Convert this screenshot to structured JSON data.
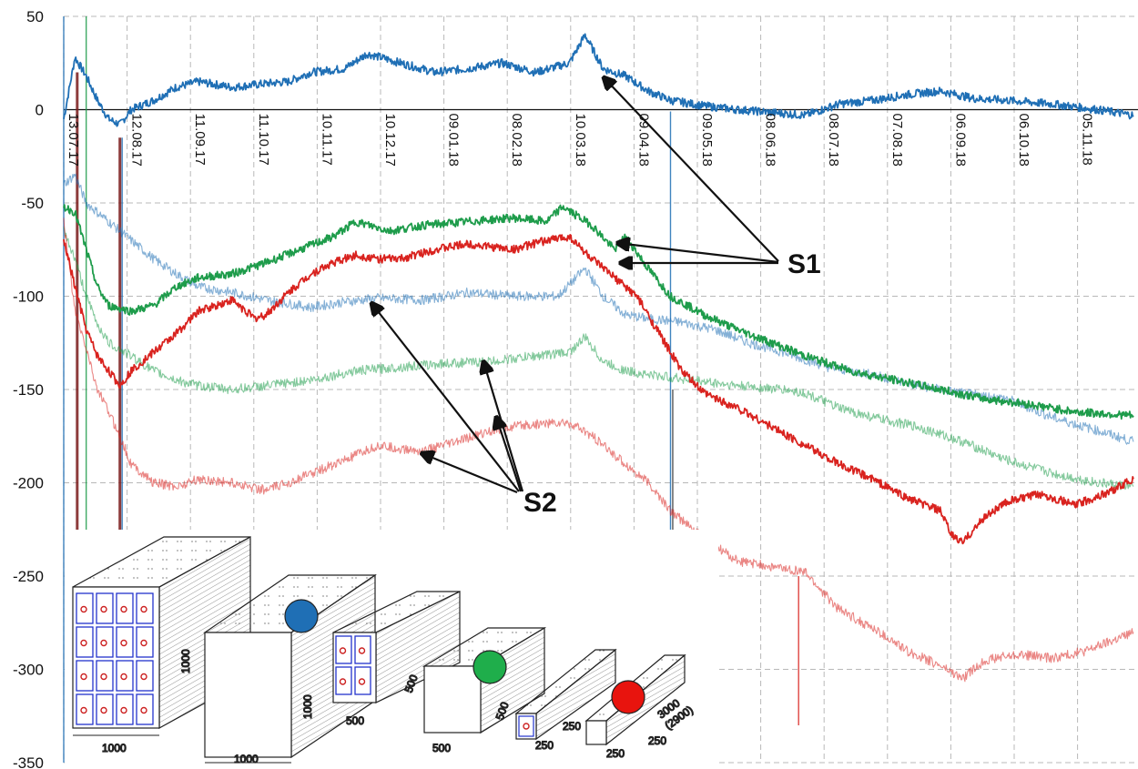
{
  "chart_data": {
    "type": "line",
    "ylim": [
      -350,
      50
    ],
    "yticks": [
      50,
      0,
      -50,
      -100,
      -150,
      -200,
      -250,
      -300,
      -350
    ],
    "ytick_labels": [
      "50",
      "0",
      "-50",
      "-100",
      "-150",
      "-200",
      "-250",
      "-300",
      "-350"
    ],
    "x_ticks": [
      "13.07.17",
      "12.08.17",
      "11.09.17",
      "11.10.17",
      "10.11.17",
      "10.12.17",
      "09.01.18",
      "08.02.18",
      "10.03.18",
      "09.04.18",
      "09.05.18",
      "08.06.18",
      "08.07.18",
      "07.08.18",
      "06.09.18",
      "06.10.18",
      "05.11.18"
    ],
    "grid": true,
    "series": [
      {
        "color": "#1f6fb5",
        "style": "solid",
        "weight": "bold",
        "points": [
          [
            0,
            -5
          ],
          [
            5,
            28
          ],
          [
            10,
            18
          ],
          [
            15,
            5
          ],
          [
            20,
            -5
          ],
          [
            25,
            -8
          ],
          [
            30,
            0
          ],
          [
            40,
            5
          ],
          [
            50,
            12
          ],
          [
            60,
            15
          ],
          [
            75,
            12
          ],
          [
            90,
            14
          ],
          [
            100,
            15
          ],
          [
            110,
            20
          ],
          [
            125,
            22
          ],
          [
            135,
            30
          ],
          [
            150,
            25
          ],
          [
            165,
            20
          ],
          [
            180,
            22
          ],
          [
            195,
            25
          ],
          [
            210,
            20
          ],
          [
            225,
            25
          ],
          [
            232,
            40
          ],
          [
            240,
            22
          ],
          [
            250,
            18
          ],
          [
            260,
            10
          ],
          [
            270,
            5
          ],
          [
            285,
            2
          ],
          [
            300,
            0
          ],
          [
            320,
            -2
          ],
          [
            330,
            -3
          ],
          [
            345,
            3
          ],
          [
            360,
            5
          ],
          [
            375,
            8
          ],
          [
            390,
            10
          ],
          [
            405,
            6
          ],
          [
            420,
            5
          ],
          [
            440,
            3
          ],
          [
            460,
            0
          ],
          [
            476,
            -3
          ]
        ]
      },
      {
        "color": "#1f6fb5",
        "style": "light",
        "weight": "light",
        "points": [
          [
            0,
            -40
          ],
          [
            5,
            -35
          ],
          [
            10,
            -50
          ],
          [
            20,
            -60
          ],
          [
            30,
            -70
          ],
          [
            40,
            -80
          ],
          [
            50,
            -88
          ],
          [
            60,
            -95
          ],
          [
            75,
            -98
          ],
          [
            90,
            -102
          ],
          [
            110,
            -106
          ],
          [
            125,
            -103
          ],
          [
            140,
            -101
          ],
          [
            160,
            -102
          ],
          [
            180,
            -98
          ],
          [
            200,
            -100
          ],
          [
            220,
            -100
          ],
          [
            232,
            -85
          ],
          [
            240,
            -100
          ],
          [
            250,
            -110
          ],
          [
            260,
            -112
          ],
          [
            275,
            -114
          ],
          [
            290,
            -118
          ],
          [
            305,
            -125
          ],
          [
            320,
            -130
          ],
          [
            340,
            -138
          ],
          [
            360,
            -142
          ],
          [
            380,
            -148
          ],
          [
            400,
            -152
          ],
          [
            420,
            -155
          ],
          [
            440,
            -165
          ],
          [
            460,
            -172
          ],
          [
            476,
            -178
          ]
        ]
      },
      {
        "color": "#1e9c4b",
        "style": "solid",
        "weight": "bold",
        "points": [
          [
            0,
            -52
          ],
          [
            5,
            -55
          ],
          [
            10,
            -75
          ],
          [
            15,
            -95
          ],
          [
            20,
            -105
          ],
          [
            30,
            -108
          ],
          [
            40,
            -105
          ],
          [
            50,
            -95
          ],
          [
            60,
            -90
          ],
          [
            75,
            -88
          ],
          [
            90,
            -82
          ],
          [
            105,
            -75
          ],
          [
            120,
            -68
          ],
          [
            130,
            -60
          ],
          [
            145,
            -65
          ],
          [
            160,
            -62
          ],
          [
            180,
            -60
          ],
          [
            200,
            -58
          ],
          [
            215,
            -60
          ],
          [
            222,
            -52
          ],
          [
            235,
            -62
          ],
          [
            245,
            -75
          ],
          [
            250,
            -68
          ],
          [
            260,
            -85
          ],
          [
            270,
            -100
          ],
          [
            285,
            -110
          ],
          [
            300,
            -118
          ],
          [
            315,
            -125
          ],
          [
            330,
            -132
          ],
          [
            350,
            -140
          ],
          [
            370,
            -145
          ],
          [
            390,
            -150
          ],
          [
            410,
            -155
          ],
          [
            430,
            -158
          ],
          [
            450,
            -162
          ],
          [
            476,
            -164
          ]
        ]
      },
      {
        "color": "#1e9c4b",
        "style": "light",
        "weight": "light",
        "points": [
          [
            0,
            -65
          ],
          [
            5,
            -80
          ],
          [
            10,
            -100
          ],
          [
            15,
            -115
          ],
          [
            20,
            -125
          ],
          [
            30,
            -132
          ],
          [
            40,
            -140
          ],
          [
            50,
            -145
          ],
          [
            60,
            -148
          ],
          [
            75,
            -150
          ],
          [
            90,
            -148
          ],
          [
            110,
            -145
          ],
          [
            130,
            -140
          ],
          [
            150,
            -138
          ],
          [
            170,
            -136
          ],
          [
            190,
            -135
          ],
          [
            210,
            -132
          ],
          [
            225,
            -130
          ],
          [
            232,
            -122
          ],
          [
            240,
            -135
          ],
          [
            250,
            -140
          ],
          [
            260,
            -142
          ],
          [
            280,
            -145
          ],
          [
            300,
            -148
          ],
          [
            320,
            -150
          ],
          [
            330,
            -152
          ],
          [
            345,
            -160
          ],
          [
            360,
            -165
          ],
          [
            380,
            -170
          ],
          [
            400,
            -178
          ],
          [
            420,
            -188
          ],
          [
            440,
            -195
          ],
          [
            460,
            -200
          ],
          [
            476,
            -202
          ]
        ]
      },
      {
        "color": "#d9231f",
        "style": "solid",
        "weight": "bold",
        "points": [
          [
            0,
            -70
          ],
          [
            5,
            -95
          ],
          [
            10,
            -118
          ],
          [
            15,
            -132
          ],
          [
            20,
            -140
          ],
          [
            25,
            -148
          ],
          [
            30,
            -140
          ],
          [
            40,
            -130
          ],
          [
            50,
            -120
          ],
          [
            60,
            -108
          ],
          [
            75,
            -102
          ],
          [
            85,
            -112
          ],
          [
            90,
            -110
          ],
          [
            100,
            -98
          ],
          [
            110,
            -88
          ],
          [
            120,
            -82
          ],
          [
            130,
            -78
          ],
          [
            140,
            -80
          ],
          [
            150,
            -80
          ],
          [
            165,
            -75
          ],
          [
            180,
            -72
          ],
          [
            200,
            -75
          ],
          [
            215,
            -70
          ],
          [
            225,
            -68
          ],
          [
            235,
            -80
          ],
          [
            245,
            -90
          ],
          [
            255,
            -100
          ],
          [
            265,
            -120
          ],
          [
            275,
            -140
          ],
          [
            285,
            -152
          ],
          [
            300,
            -160
          ],
          [
            315,
            -170
          ],
          [
            330,
            -180
          ],
          [
            345,
            -190
          ],
          [
            360,
            -198
          ],
          [
            375,
            -208
          ],
          [
            390,
            -215
          ],
          [
            395,
            -228
          ],
          [
            400,
            -232
          ],
          [
            410,
            -218
          ],
          [
            420,
            -210
          ],
          [
            435,
            -206
          ],
          [
            450,
            -212
          ],
          [
            465,
            -205
          ],
          [
            476,
            -198
          ]
        ]
      },
      {
        "color": "#d9231f",
        "style": "light",
        "weight": "light",
        "points": [
          [
            0,
            -60
          ],
          [
            5,
            -108
          ],
          [
            10,
            -128
          ],
          [
            15,
            -150
          ],
          [
            20,
            -162
          ],
          [
            25,
            -175
          ],
          [
            30,
            -190
          ],
          [
            40,
            -200
          ],
          [
            50,
            -202
          ],
          [
            60,
            -198
          ],
          [
            75,
            -200
          ],
          [
            90,
            -204
          ],
          [
            100,
            -200
          ],
          [
            110,
            -195
          ],
          [
            125,
            -188
          ],
          [
            140,
            -180
          ],
          [
            150,
            -182
          ],
          [
            160,
            -183
          ],
          [
            175,
            -178
          ],
          [
            190,
            -172
          ],
          [
            200,
            -170
          ],
          [
            215,
            -168
          ],
          [
            225,
            -168
          ],
          [
            235,
            -175
          ],
          [
            245,
            -185
          ],
          [
            260,
            -200
          ],
          [
            270,
            -215
          ],
          [
            285,
            -230
          ],
          [
            300,
            -242
          ],
          [
            315,
            -245
          ],
          [
            330,
            -248
          ],
          [
            335,
            -255
          ],
          [
            345,
            -268
          ],
          [
            360,
            -278
          ],
          [
            375,
            -290
          ],
          [
            390,
            -298
          ],
          [
            400,
            -305
          ],
          [
            410,
            -295
          ],
          [
            425,
            -292
          ],
          [
            440,
            -294
          ],
          [
            455,
            -290
          ],
          [
            470,
            -283
          ],
          [
            476,
            -280
          ]
        ]
      }
    ],
    "vlines": [
      {
        "color": "#1f6fb5",
        "x": 0,
        "y0": -350,
        "y1": 50
      },
      {
        "color": "#7a1a1a",
        "x": 6,
        "y0": -350,
        "y1": 20
      },
      {
        "color": "#7a1a1a",
        "x": 25,
        "y0": -350,
        "y1": -15
      },
      {
        "color": "#1f6fb5",
        "x": 26,
        "y0": -350,
        "y1": -15
      },
      {
        "color": "#1f6fb5",
        "x": 270,
        "y0": -250,
        "y1": -1
      },
      {
        "color": "#3a3a3a",
        "x": 271,
        "y0": -250,
        "y1": -150
      },
      {
        "color": "#d9231f",
        "x": 327,
        "y0": -330,
        "y1": -250
      },
      {
        "color": "#1e9c4b",
        "x": 10,
        "y0": -350,
        "y1": 50
      }
    ]
  },
  "annotations": {
    "s1_label": "S1",
    "s2_label": "S2"
  },
  "inset": {
    "dims": {
      "d1000a": "1000",
      "d1000b": "1000",
      "d1000c": "1000",
      "d1000d": "1000",
      "d500a": "500",
      "d500b": "500",
      "d500c": "500",
      "d500d": "500",
      "d250a": "250",
      "d250b": "250",
      "d250c": "250",
      "d250d": "250",
      "d3000": "3000",
      "d2900": "(2900)"
    },
    "dot_colors": [
      "#1f6fb5",
      "#1fae4b",
      "#e8140e"
    ]
  }
}
